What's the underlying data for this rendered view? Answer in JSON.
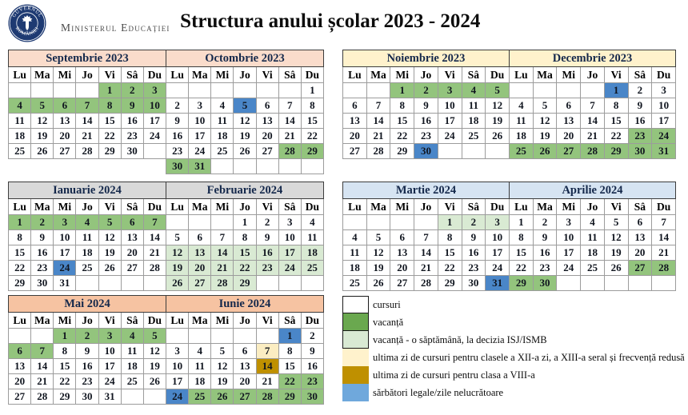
{
  "header": {
    "ministry": "Ministerul Educației",
    "title": "Structura anului școlar 2023 - 2024",
    "logo_top": "GUVERNUL",
    "logo_bottom": "ROMÂNIEI"
  },
  "weekdays": [
    "Lu",
    "Ma",
    "Mi",
    "Jo",
    "Vi",
    "Sâ",
    "Du"
  ],
  "palettes": {
    "peach": "#FADCCB",
    "cream": "#FFF2CC",
    "gray": "#D9D9D9",
    "lightblue": "#D6E4F2",
    "salmon": "#F6C3A2"
  },
  "cell_colors": {
    "g": "#93C47D",
    "lg": "#D9EAD3",
    "y": "#FBEDC2",
    "go": "#BF9000",
    "b": "#4A86C8"
  },
  "months": [
    {
      "name": "Septembrie 2023",
      "palette": "peach",
      "rows": [
        [
          "",
          "",
          "",
          "",
          "1:g",
          "2:g",
          "3:g"
        ],
        [
          "4:g",
          "5:g",
          "6:g",
          "7:g",
          "8:g",
          "9:g",
          "10:g"
        ],
        [
          "11",
          "12",
          "13",
          "14",
          "15",
          "16",
          "17"
        ],
        [
          "18",
          "19",
          "20",
          "21",
          "22",
          "23",
          "24"
        ],
        [
          "25",
          "26",
          "27",
          "28",
          "29",
          "30",
          ""
        ]
      ]
    },
    {
      "name": "Octombrie 2023",
      "palette": "peach",
      "rows": [
        [
          "",
          "",
          "",
          "",
          "",
          "",
          "1"
        ],
        [
          "2",
          "3",
          "4",
          "5:b",
          "6",
          "7",
          "8"
        ],
        [
          "9",
          "10",
          "11",
          "12",
          "13",
          "14",
          "15"
        ],
        [
          "16",
          "17",
          "18",
          "19",
          "20",
          "21",
          "22"
        ],
        [
          "23",
          "24",
          "25",
          "26",
          "27",
          "28:g",
          "29:g"
        ],
        [
          "30:g",
          "31:g",
          "",
          "",
          "",
          "",
          ""
        ]
      ]
    },
    {
      "name": "Noiembrie 2023",
      "palette": "cream",
      "rows": [
        [
          "",
          "",
          "1:g",
          "2:g",
          "3:g",
          "4:g",
          "5:g"
        ],
        [
          "6",
          "7",
          "8",
          "9",
          "10",
          "11",
          "12"
        ],
        [
          "13",
          "14",
          "15",
          "16",
          "17",
          "18",
          "19"
        ],
        [
          "20",
          "21",
          "22",
          "23",
          "24",
          "25",
          "26"
        ],
        [
          "27",
          "28",
          "29",
          "30:b",
          "",
          "",
          ""
        ]
      ]
    },
    {
      "name": "Decembrie 2023",
      "palette": "cream",
      "rows": [
        [
          "",
          "",
          "",
          "",
          "1:b",
          "2",
          "3"
        ],
        [
          "4",
          "5",
          "6",
          "7",
          "8",
          "9",
          "10"
        ],
        [
          "11",
          "12",
          "13",
          "14",
          "15",
          "16",
          "17"
        ],
        [
          "18",
          "19",
          "20",
          "21",
          "22",
          "23:g",
          "24:g"
        ],
        [
          "25:g",
          "26:g",
          "27:g",
          "28:g",
          "29:g",
          "30:g",
          "31:g"
        ]
      ]
    },
    {
      "name": "Ianuarie 2024",
      "palette": "gray",
      "rows": [
        [
          "1:g",
          "2:g",
          "3:g",
          "4:g",
          "5:g",
          "6:g",
          "7:g"
        ],
        [
          "8",
          "9",
          "10",
          "11",
          "12",
          "13",
          "14"
        ],
        [
          "15",
          "16",
          "17",
          "18",
          "19",
          "20",
          "21"
        ],
        [
          "22",
          "23",
          "24:b",
          "25",
          "26",
          "27",
          "28"
        ],
        [
          "29",
          "30",
          "31",
          "",
          "",
          "",
          ""
        ]
      ]
    },
    {
      "name": "Februarie 2024",
      "palette": "gray",
      "rows": [
        [
          "",
          "",
          "",
          "1",
          "2",
          "3",
          "4"
        ],
        [
          "5",
          "6",
          "7",
          "8",
          "9",
          "10",
          "11"
        ],
        [
          "12:lg",
          "13:lg",
          "14:lg",
          "15:lg",
          "16:lg",
          "17:lg",
          "18:lg"
        ],
        [
          "19:lg",
          "20:lg",
          "21:lg",
          "22:lg",
          "23:lg",
          "24:lg",
          "25:lg"
        ],
        [
          "26:lg",
          "27:lg",
          "28:lg",
          "29:lg",
          "",
          "",
          ""
        ]
      ]
    },
    {
      "name": "Martie 2024",
      "palette": "lightblue",
      "rows": [
        [
          "",
          "",
          "",
          "",
          "1:lg",
          "2:lg",
          "3:lg"
        ],
        [
          "4",
          "5",
          "6",
          "7",
          "8",
          "9",
          "10"
        ],
        [
          "11",
          "12",
          "13",
          "14",
          "15",
          "16",
          "17"
        ],
        [
          "18",
          "19",
          "20",
          "21",
          "22",
          "23",
          "24"
        ],
        [
          "25",
          "26",
          "27",
          "28",
          "29",
          "30",
          "31:b"
        ]
      ]
    },
    {
      "name": "Aprilie 2024",
      "palette": "lightblue",
      "rows": [
        [
          "1",
          "2",
          "3",
          "4",
          "5",
          "6",
          "7"
        ],
        [
          "8",
          "9",
          "10",
          "11",
          "12",
          "13",
          "14"
        ],
        [
          "15",
          "16",
          "17",
          "18",
          "19",
          "20",
          "21"
        ],
        [
          "22",
          "23",
          "24",
          "25",
          "26",
          "27:g",
          "28:g"
        ],
        [
          "29:g",
          "30:g",
          "",
          "",
          "",
          "",
          ""
        ]
      ]
    },
    {
      "name": "Mai 2024",
      "palette": "salmon",
      "rows": [
        [
          "",
          "",
          "1:g",
          "2:g",
          "3:g",
          "4:g",
          "5:g"
        ],
        [
          "6:g",
          "7:g",
          "8",
          "9",
          "10",
          "11",
          "12"
        ],
        [
          "13",
          "14",
          "15",
          "16",
          "17",
          "18",
          "19"
        ],
        [
          "20",
          "21",
          "22",
          "23",
          "24",
          "25",
          "26"
        ],
        [
          "27",
          "28",
          "29",
          "30",
          "31",
          "",
          ""
        ]
      ]
    },
    {
      "name": "Iunie 2024",
      "palette": "salmon",
      "rows": [
        [
          "",
          "",
          "",
          "",
          "",
          "1:b",
          "2"
        ],
        [
          "3",
          "4",
          "5",
          "6",
          "7:y",
          "8",
          "9"
        ],
        [
          "10",
          "11",
          "12",
          "13",
          "14:go",
          "15",
          "16"
        ],
        [
          "17",
          "18",
          "19",
          "20",
          "21",
          "22:g",
          "23:g"
        ],
        [
          "24:b",
          "25:g",
          "26:g",
          "27:g",
          "28:g",
          "29:g",
          "30:g"
        ]
      ]
    }
  ],
  "legend": [
    {
      "color": "#FFFFFF",
      "bordered": true,
      "label": "cursuri"
    },
    {
      "color": "#6AA84F",
      "bordered": true,
      "label": "vacanță"
    },
    {
      "color": "#D9EAD3",
      "bordered": true,
      "label": "vacanță - o săptămână, la decizia ISJ/ISMB"
    },
    {
      "color": "#FFF2CC",
      "bordered": false,
      "label": "ultima zi de cursuri pentru clasele a XII-a zi, a XIII-a seral și frecvență redusă"
    },
    {
      "color": "#BF9000",
      "bordered": false,
      "label": "ultima zi de cursuri pentru clasa a VIII-a"
    },
    {
      "color": "#6FA8DC",
      "bordered": false,
      "label": "sărbători legale/zile nelucrătoare"
    }
  ]
}
